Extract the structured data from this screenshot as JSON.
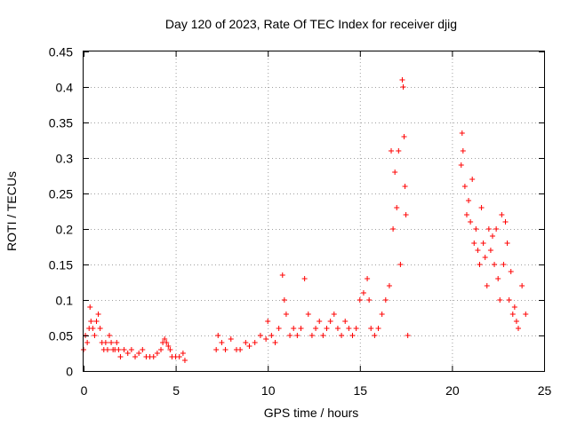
{
  "chart_data": {
    "type": "scatter",
    "title": "Day 120 of 2023, Rate Of TEC Index for receiver djig",
    "xlabel": "GPS time / hours",
    "ylabel": "ROTI / TECUs",
    "xlim": [
      0,
      25
    ],
    "ylim": [
      0,
      0.45
    ],
    "xticks": [
      0,
      5,
      10,
      15,
      20,
      25
    ],
    "xtick_labels": [
      "0",
      "5",
      "10",
      "15",
      "20",
      "25"
    ],
    "yticks": [
      0,
      0.05,
      0.1,
      0.15,
      0.2,
      0.25,
      0.3,
      0.35,
      0.4,
      0.45
    ],
    "ytick_labels": [
      "0",
      "0.05",
      "0.1",
      "0.15",
      "0.2",
      "0.25",
      "0.3",
      "0.35",
      "0.4",
      "0.45"
    ],
    "grid": true,
    "marker": "plus",
    "color": "#ff0000",
    "series": [
      {
        "x": [
          0.0,
          0.1,
          0.2,
          0.3,
          0.35,
          0.4,
          0.5,
          0.6,
          0.7,
          0.8,
          0.9,
          1.0,
          1.1,
          1.2,
          1.3,
          1.4,
          1.5,
          1.6,
          1.7,
          1.8,
          1.9,
          2.0,
          2.2,
          2.4,
          2.6,
          2.8,
          3.0,
          3.2,
          3.4,
          3.6,
          3.8,
          4.0,
          4.2,
          4.3,
          4.4,
          4.5,
          4.6,
          4.7,
          4.8,
          5.0,
          5.2,
          5.4,
          5.5,
          7.2,
          7.3,
          7.5,
          7.7,
          8.0,
          8.3,
          8.5,
          8.8,
          9.0,
          9.3,
          9.6,
          9.9,
          10.0,
          10.2,
          10.4,
          10.6,
          10.8,
          10.9,
          11.0,
          11.2,
          11.4,
          11.6,
          11.8,
          12.0,
          12.2,
          12.4,
          12.6,
          12.8,
          13.0,
          13.2,
          13.4,
          13.6,
          13.8,
          14.0,
          14.2,
          14.4,
          14.6,
          14.8,
          15.0,
          15.2,
          15.4,
          15.5,
          15.6,
          15.8,
          16.0,
          16.2,
          16.4,
          16.6,
          16.7,
          16.8,
          16.9,
          17.0,
          17.1,
          17.2,
          17.3,
          17.35,
          17.4,
          17.45,
          17.5,
          17.6,
          20.5,
          20.55,
          20.6,
          20.7,
          20.8,
          20.9,
          21.0,
          21.1,
          21.2,
          21.3,
          21.4,
          21.5,
          21.6,
          21.7,
          21.8,
          21.9,
          22.0,
          22.1,
          22.2,
          22.3,
          22.4,
          22.5,
          22.6,
          22.7,
          22.8,
          22.9,
          23.0,
          23.1,
          23.2,
          23.3,
          23.4,
          23.5,
          23.6,
          23.8,
          24.0
        ],
        "y": [
          0.03,
          0.05,
          0.04,
          0.06,
          0.09,
          0.07,
          0.06,
          0.05,
          0.07,
          0.08,
          0.06,
          0.04,
          0.03,
          0.04,
          0.03,
          0.05,
          0.04,
          0.03,
          0.03,
          0.04,
          0.03,
          0.02,
          0.03,
          0.025,
          0.03,
          0.02,
          0.025,
          0.03,
          0.02,
          0.02,
          0.02,
          0.025,
          0.03,
          0.04,
          0.045,
          0.04,
          0.035,
          0.03,
          0.02,
          0.02,
          0.02,
          0.025,
          0.015,
          0.03,
          0.05,
          0.04,
          0.03,
          0.045,
          0.03,
          0.03,
          0.04,
          0.035,
          0.04,
          0.05,
          0.045,
          0.07,
          0.05,
          0.04,
          0.06,
          0.135,
          0.1,
          0.08,
          0.05,
          0.06,
          0.05,
          0.06,
          0.13,
          0.08,
          0.05,
          0.06,
          0.07,
          0.05,
          0.06,
          0.07,
          0.08,
          0.06,
          0.05,
          0.07,
          0.06,
          0.05,
          0.06,
          0.1,
          0.11,
          0.13,
          0.1,
          0.06,
          0.05,
          0.06,
          0.08,
          0.1,
          0.12,
          0.31,
          0.2,
          0.28,
          0.23,
          0.31,
          0.15,
          0.41,
          0.4,
          0.33,
          0.26,
          0.22,
          0.05,
          0.29,
          0.335,
          0.31,
          0.26,
          0.22,
          0.24,
          0.21,
          0.27,
          0.18,
          0.2,
          0.17,
          0.15,
          0.23,
          0.18,
          0.16,
          0.12,
          0.2,
          0.17,
          0.19,
          0.15,
          0.2,
          0.13,
          0.1,
          0.22,
          0.15,
          0.21,
          0.18,
          0.1,
          0.14,
          0.08,
          0.09,
          0.07,
          0.06,
          0.12,
          0.08
        ]
      }
    ]
  }
}
